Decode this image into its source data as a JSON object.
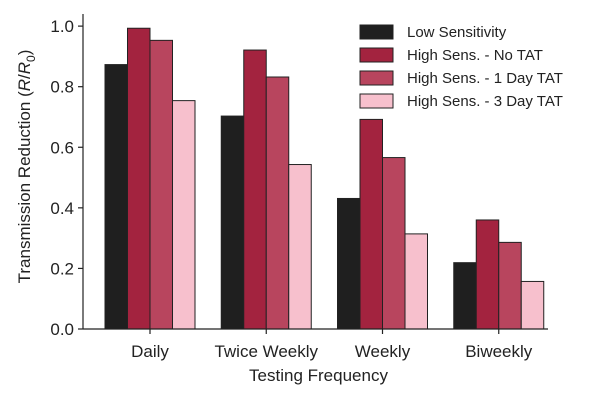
{
  "chart_data": {
    "type": "bar",
    "title": "",
    "xlabel": "Testing Frequency",
    "ylabel": {
      "prefix": "Transmission Reduction (",
      "r_num": "R",
      "slash": "/",
      "r_den": "R",
      "subscript": "0",
      "suffix": ")"
    },
    "categories": [
      "Daily",
      "Twice Weekly",
      "Weekly",
      "Biweekly"
    ],
    "ylim": [
      0,
      1.04
    ],
    "yticks": [
      "0.0",
      "0.2",
      "0.4",
      "0.6",
      "0.8",
      "1.0"
    ],
    "grid": false,
    "legend_position": "top-right",
    "series": [
      {
        "name": "Low Sensitivity",
        "color": "#1f1f1f",
        "values": [
          0.873,
          0.703,
          0.431,
          0.219
        ]
      },
      {
        "name": "High Sens. - No TAT",
        "color": "#a3233f",
        "values": [
          0.993,
          0.921,
          0.692,
          0.36
        ]
      },
      {
        "name": "High Sens. - 1 Day TAT",
        "color": "#b8455e",
        "values": [
          0.953,
          0.832,
          0.566,
          0.286
        ]
      },
      {
        "name": "High Sens. - 3 Day TAT",
        "color": "#f7c0cd",
        "values": [
          0.754,
          0.543,
          0.314,
          0.157
        ]
      }
    ]
  }
}
